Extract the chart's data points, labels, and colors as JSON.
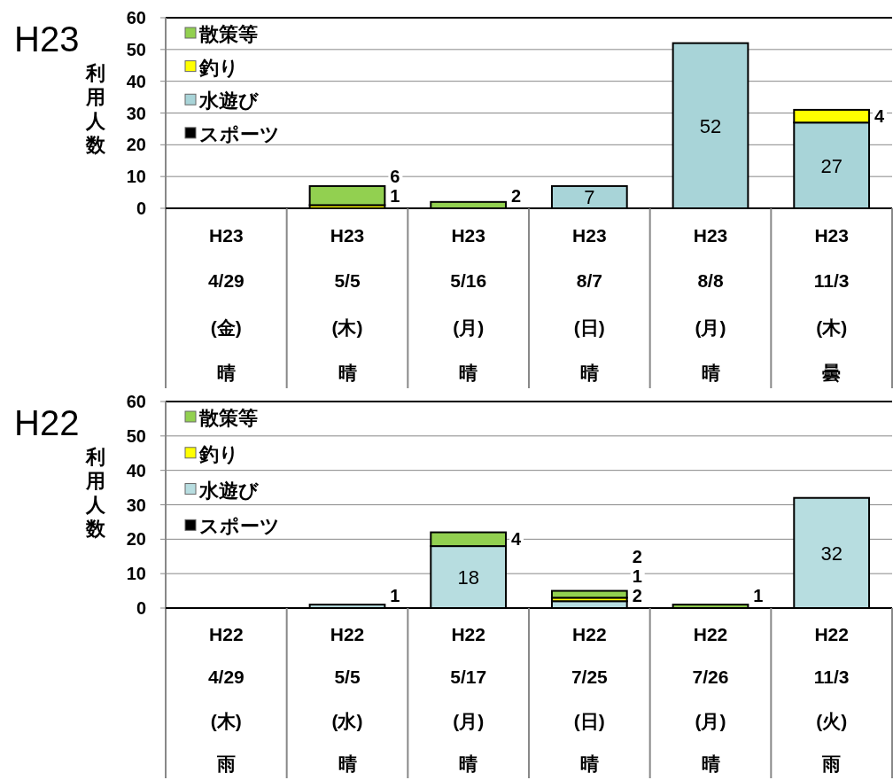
{
  "chart_data": [
    {
      "type": "bar",
      "stacked": true,
      "title": "H23",
      "ylabel": "利用人数",
      "ylim": [
        0,
        60
      ],
      "yticks": [
        0,
        10,
        20,
        30,
        40,
        50,
        60
      ],
      "grid": "y",
      "legend": "top left",
      "categories": [
        "H23\n4/29\n(金)\n晴",
        "H23\n5/5\n(木)\n晴",
        "H23\n5/16\n(月)\n晴",
        "H23\n8/7\n(日)\n晴",
        "H23\n8/8\n(月)\n晴",
        "H23\n11/3\n(木)\n曇"
      ],
      "series": [
        {
          "name": "スポーツ",
          "color": "#000000",
          "values": [
            0,
            0,
            0,
            0,
            0,
            0
          ],
          "value_labels": [
            null,
            null,
            null,
            null,
            null,
            null
          ]
        },
        {
          "name": "水遊び",
          "color": "#a8d4d8",
          "values": [
            0,
            0,
            0,
            7,
            52,
            27
          ],
          "value_labels": [
            null,
            null,
            null,
            "7",
            "52",
            "27"
          ]
        },
        {
          "name": "釣り",
          "color": "#ffff00",
          "values": [
            0,
            1,
            0,
            0,
            0,
            4
          ],
          "value_labels": [
            null,
            "1",
            null,
            null,
            null,
            "4"
          ]
        },
        {
          "name": "散策等",
          "color": "#92d050",
          "values": [
            0,
            6,
            2,
            0,
            0,
            0
          ],
          "value_labels": [
            null,
            "6",
            "2",
            null,
            null,
            null
          ]
        }
      ]
    },
    {
      "type": "bar",
      "stacked": true,
      "title": "H22",
      "ylabel": "利用人数",
      "ylim": [
        0,
        60
      ],
      "yticks": [
        0,
        10,
        20,
        30,
        40,
        50,
        60
      ],
      "grid": "y",
      "legend": "top left",
      "categories": [
        "H22\n4/29\n(木)\n雨",
        "H22\n5/5\n(水)\n晴",
        "H22\n5/17\n(月)\n晴",
        "H22\n7/25\n(日)\n晴",
        "H22\n7/26\n(月)\n晴",
        "H22\n11/3\n(火)\n雨"
      ],
      "series": [
        {
          "name": "スポーツ",
          "color": "#000000",
          "values": [
            0,
            0,
            0,
            0,
            0,
            0
          ],
          "value_labels": [
            null,
            null,
            null,
            null,
            null,
            null
          ]
        },
        {
          "name": "水遊び",
          "color": "#b7dde0",
          "values": [
            0,
            1,
            18,
            2,
            0,
            32
          ],
          "value_labels": [
            null,
            "1",
            "18",
            "2",
            null,
            "32"
          ]
        },
        {
          "name": "釣り",
          "color": "#ffff00",
          "values": [
            0,
            0,
            0,
            1,
            0,
            0
          ],
          "value_labels": [
            null,
            null,
            null,
            "1",
            null,
            null
          ]
        },
        {
          "name": "散策等",
          "color": "#92d050",
          "values": [
            0,
            0,
            4,
            2,
            1,
            0
          ],
          "value_labels": [
            null,
            null,
            "4",
            "2",
            "1",
            null
          ]
        }
      ]
    }
  ]
}
